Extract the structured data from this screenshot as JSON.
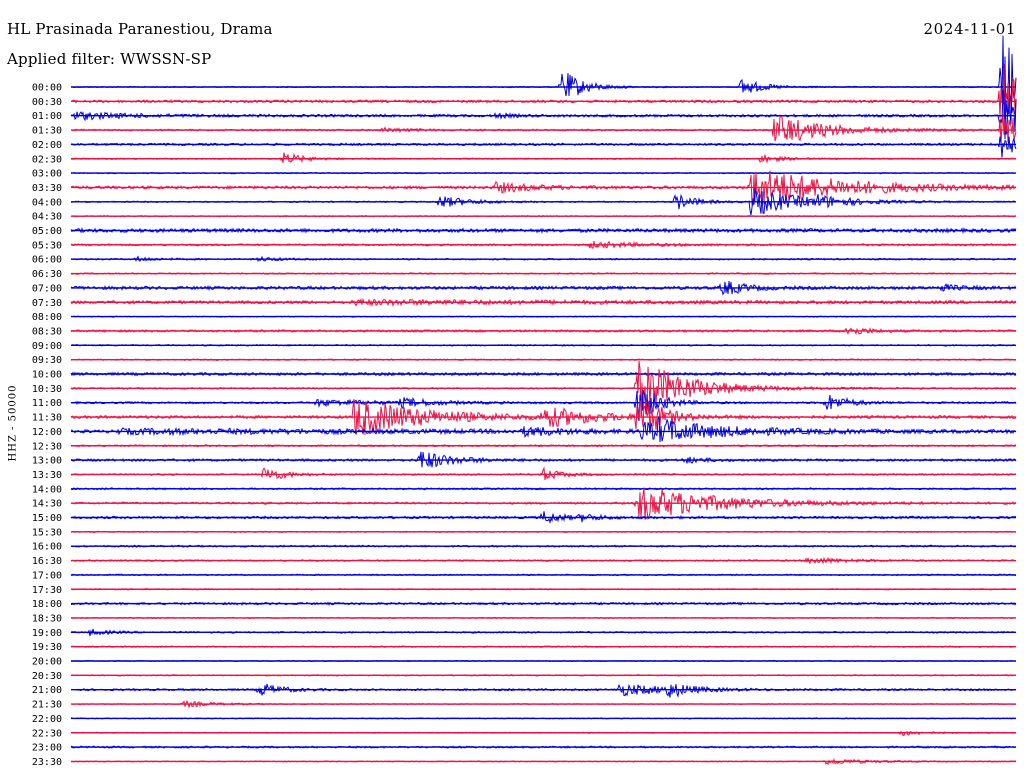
{
  "header": {
    "station": "HL Prasinada Paranestiou, Drama",
    "date": "2024-11-01",
    "filter": "Applied filter: WWSSN-SP"
  },
  "side_label": "HHZ - 50000",
  "colors": {
    "trace_a": "#0000dd",
    "trace_b": "#ee1144"
  },
  "chart_data": {
    "type": "line",
    "title": "HL Prasinada Paranestiou, Drama",
    "subtitle": "Applied filter: WWSSN-SP",
    "ylabel": "HHZ - 50000",
    "row_labels": [
      "00:00",
      "00:30",
      "01:00",
      "01:30",
      "02:00",
      "02:30",
      "03:00",
      "03:30",
      "04:00",
      "04:30",
      "05:00",
      "05:30",
      "06:00",
      "06:30",
      "07:00",
      "07:30",
      "08:00",
      "08:30",
      "09:00",
      "09:30",
      "10:00",
      "10:30",
      "11:00",
      "11:30",
      "12:00",
      "12:30",
      "13:00",
      "13:30",
      "14:00",
      "14:30",
      "15:00",
      "15:30",
      "16:00",
      "16:30",
      "17:00",
      "17:30",
      "18:00",
      "18:30",
      "19:00",
      "19:30",
      "20:00",
      "20:30",
      "21:00",
      "21:30",
      "22:00",
      "22:30",
      "23:00",
      "23:30"
    ],
    "trace_colors": [
      "#0000dd",
      "#ee1144"
    ],
    "noise": [
      0.6,
      1.3,
      1.3,
      0.9,
      1.1,
      0.7,
      0.6,
      1.4,
      0.7,
      0.6,
      1.8,
      1.0,
      0.8,
      0.7,
      1.6,
      1.5,
      0.5,
      1.1,
      0.7,
      0.7,
      1.4,
      0.8,
      1.0,
      1.4,
      1.5,
      0.9,
      1.2,
      0.8,
      0.9,
      1.0,
      1.2,
      0.6,
      0.9,
      0.8,
      0.7,
      0.6,
      1.1,
      0.6,
      0.8,
      0.7,
      0.5,
      0.6,
      1.0,
      0.5,
      0.5,
      0.5,
      0.9,
      0.5
    ],
    "events": [
      {
        "row": 0,
        "x": 0.52,
        "amp": 18,
        "dur": 0.02
      },
      {
        "row": 0,
        "x": 0.71,
        "amp": 9,
        "dur": 0.02
      },
      {
        "row": 0,
        "x": 0.985,
        "amp": 58,
        "dur": 0.03
      },
      {
        "row": 1,
        "x": 0.985,
        "amp": 40,
        "dur": 0.03
      },
      {
        "row": 2,
        "x": 0.0,
        "amp": 4,
        "dur": 0.05
      },
      {
        "row": 2,
        "x": 0.45,
        "amp": 2,
        "dur": 0.015
      },
      {
        "row": 2,
        "x": 0.985,
        "amp": 26,
        "dur": 0.03
      },
      {
        "row": 3,
        "x": 0.33,
        "amp": 2,
        "dur": 0.03
      },
      {
        "row": 3,
        "x": 0.745,
        "amp": 16,
        "dur": 0.05
      },
      {
        "row": 3,
        "x": 0.985,
        "amp": 18,
        "dur": 0.03
      },
      {
        "row": 4,
        "x": 0.985,
        "amp": 14,
        "dur": 0.02
      },
      {
        "row": 5,
        "x": 0.225,
        "amp": 6,
        "dur": 0.02
      },
      {
        "row": 5,
        "x": 0.73,
        "amp": 4,
        "dur": 0.02
      },
      {
        "row": 7,
        "x": 0.45,
        "amp": 5,
        "dur": 0.04
      },
      {
        "row": 7,
        "x": 0.72,
        "amp": 20,
        "dur": 0.09
      },
      {
        "row": 8,
        "x": 0.39,
        "amp": 6,
        "dur": 0.03
      },
      {
        "row": 8,
        "x": 0.64,
        "amp": 8,
        "dur": 0.02
      },
      {
        "row": 8,
        "x": 0.72,
        "amp": 14,
        "dur": 0.05
      },
      {
        "row": 8,
        "x": 0.79,
        "amp": 4,
        "dur": 0.03
      },
      {
        "row": 11,
        "x": 0.55,
        "amp": 3,
        "dur": 0.05
      },
      {
        "row": 12,
        "x": 0.07,
        "amp": 2,
        "dur": 0.02
      },
      {
        "row": 12,
        "x": 0.2,
        "amp": 2,
        "dur": 0.02
      },
      {
        "row": 14,
        "x": 0.69,
        "amp": 8,
        "dur": 0.02
      },
      {
        "row": 14,
        "x": 0.92,
        "amp": 3,
        "dur": 0.02
      },
      {
        "row": 15,
        "x": 0.3,
        "amp": 2,
        "dur": 0.2
      },
      {
        "row": 17,
        "x": 0.82,
        "amp": 5,
        "dur": 0.02
      },
      {
        "row": 21,
        "x": 0.6,
        "amp": 30,
        "dur": 0.05
      },
      {
        "row": 22,
        "x": 0.26,
        "amp": 3,
        "dur": 0.07
      },
      {
        "row": 22,
        "x": 0.35,
        "amp": 4,
        "dur": 0.03
      },
      {
        "row": 22,
        "x": 0.6,
        "amp": 20,
        "dur": 0.02
      },
      {
        "row": 22,
        "x": 0.8,
        "amp": 9,
        "dur": 0.02
      },
      {
        "row": 23,
        "x": 0.3,
        "amp": 20,
        "dur": 0.07
      },
      {
        "row": 23,
        "x": 0.5,
        "amp": 10,
        "dur": 0.05
      },
      {
        "row": 23,
        "x": 0.6,
        "amp": 28,
        "dur": 0.02
      },
      {
        "row": 24,
        "x": 0.05,
        "amp": 2,
        "dur": 0.4
      },
      {
        "row": 24,
        "x": 0.48,
        "amp": 4,
        "dur": 0.04
      },
      {
        "row": 24,
        "x": 0.605,
        "amp": 10,
        "dur": 0.02
      },
      {
        "row": 24,
        "x": 0.62,
        "amp": 9,
        "dur": 0.08
      },
      {
        "row": 26,
        "x": 0.37,
        "amp": 10,
        "dur": 0.03
      },
      {
        "row": 26,
        "x": 0.65,
        "amp": 3,
        "dur": 0.02
      },
      {
        "row": 27,
        "x": 0.205,
        "amp": 8,
        "dur": 0.02
      },
      {
        "row": 27,
        "x": 0.5,
        "amp": 6,
        "dur": 0.02
      },
      {
        "row": 29,
        "x": 0.6,
        "amp": 18,
        "dur": 0.08
      },
      {
        "row": 30,
        "x": 0.5,
        "amp": 6,
        "dur": 0.02
      },
      {
        "row": 30,
        "x": 0.54,
        "amp": 3,
        "dur": 0.02
      },
      {
        "row": 33,
        "x": 0.78,
        "amp": 3,
        "dur": 0.04
      },
      {
        "row": 38,
        "x": 0.02,
        "amp": 3,
        "dur": 0.02
      },
      {
        "row": 42,
        "x": 0.2,
        "amp": 7,
        "dur": 0.02
      },
      {
        "row": 42,
        "x": 0.58,
        "amp": 6,
        "dur": 0.05
      },
      {
        "row": 42,
        "x": 0.63,
        "amp": 7,
        "dur": 0.02
      },
      {
        "row": 43,
        "x": 0.12,
        "amp": 3,
        "dur": 0.03
      },
      {
        "row": 45,
        "x": 0.88,
        "amp": 3,
        "dur": 0.02
      },
      {
        "row": 47,
        "x": 0.8,
        "amp": 3,
        "dur": 0.04
      }
    ]
  }
}
